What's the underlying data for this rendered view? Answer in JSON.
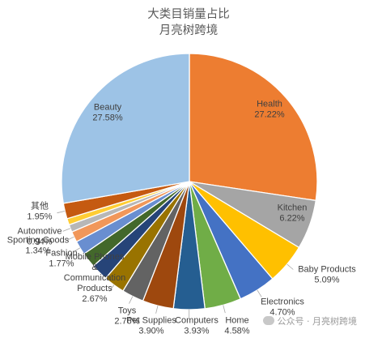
{
  "chart_data": {
    "type": "pie",
    "title": "大类目销量占比",
    "subtitle": "月亮树跨境",
    "slices": [
      {
        "label": "Health",
        "value": 27.22,
        "value_label": "27.22%",
        "color": "#ED7D31"
      },
      {
        "label": "Kitchen",
        "value": 6.22,
        "value_label": "6.22%",
        "color": "#A5A5A5"
      },
      {
        "label": "Baby Products",
        "value": 5.09,
        "value_label": "5.09%",
        "color": "#FFC000"
      },
      {
        "label": "Electronics",
        "value": 4.7,
        "value_label": "4.70%",
        "color": "#4472C4"
      },
      {
        "label": "Home",
        "value": 4.58,
        "value_label": "4.58%",
        "color": "#70AD47"
      },
      {
        "label": "Computers",
        "value": 3.93,
        "value_label": "3.93%",
        "color": "#255E91"
      },
      {
        "label": "Pet Supplies",
        "value": 3.9,
        "value_label": "3.90%",
        "color": "#9E480E"
      },
      {
        "label": "Toys",
        "value": 2.76,
        "value_label": "2.76%",
        "color": "#636363"
      },
      {
        "label": "Mobile Phones & Communication Products",
        "value": 2.67,
        "value_label": "2.67%",
        "color": "#997300"
      },
      {
        "label": "",
        "value": 2.14,
        "value_label": "",
        "color": "#264478"
      },
      {
        "label": "",
        "value": 1.9,
        "value_label": "",
        "color": "#43682B"
      },
      {
        "label": "Fashion",
        "value": 1.77,
        "value_label": "1.77%",
        "color": "#698ED0"
      },
      {
        "label": "Sporting Goods",
        "value": 1.34,
        "value_label": "1.34%",
        "color": "#F1975A"
      },
      {
        "label": "Automotive",
        "value": 0.94,
        "value_label": "0.94%",
        "color": "#B7B7B7"
      },
      {
        "label": "",
        "value": 0.8,
        "value_label": "",
        "color": "#FFCD33"
      },
      {
        "label": "其他",
        "value": 1.95,
        "value_label": "1.95%",
        "color": "#C55A11"
      },
      {
        "label": "Beauty",
        "value": 27.58,
        "value_label": "27.58%",
        "color": "#9DC3E6"
      }
    ]
  },
  "watermark": {
    "text": "公众号 · 月亮树跨境"
  }
}
